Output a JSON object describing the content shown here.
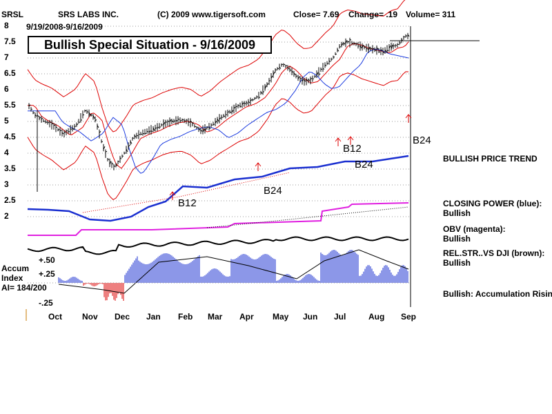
{
  "header": {
    "ticker": "SRSL",
    "company": "SRS LABS INC.",
    "copyright": "(C) 2009 www.tigersoft.com",
    "close": "Close=  7.69",
    "change": "Change= .19",
    "volume": "Volume= 311",
    "date_range": "9/19/2008-9/16/2009"
  },
  "banner": "Bullish Special Situation - 9/16/2009",
  "colors": {
    "price": "#000000",
    "bands": "#dd0000",
    "ma_short": "#dd0000",
    "ma_long": "#1a3adf",
    "closing_power": "#1a2fd0",
    "obv": "#e020e0",
    "relstr": "#000000",
    "accum_pos": "#1a2fd0",
    "accum_neg": "#dd0000",
    "arrows": "#dd0000"
  },
  "chart_data": {
    "type": "line",
    "y_ticks": [
      "8",
      "7.5",
      "7",
      "6.5",
      "6",
      "5.5",
      "5",
      "4.5",
      "4",
      "3.5",
      "3",
      "2.5",
      "2"
    ],
    "x_ticks": [
      "Oct",
      "Nov",
      "Dec",
      "Jan",
      "Feb",
      "Mar",
      "Apr",
      "May",
      "Jun",
      "Jul",
      "Aug",
      "Sep"
    ],
    "ylim": [
      2,
      8
    ],
    "grid": true,
    "price_series": [
      [
        0.0,
        5.55
      ],
      [
        0.3,
        5.2
      ],
      [
        0.6,
        5.05
      ],
      [
        1.0,
        4.9
      ],
      [
        1.5,
        4.6
      ],
      [
        2.0,
        4.85
      ],
      [
        2.4,
        5.35
      ],
      [
        2.8,
        5.1
      ],
      [
        3.1,
        4.3
      ],
      [
        3.35,
        3.75
      ],
      [
        3.6,
        3.55
      ],
      [
        3.8,
        3.75
      ],
      [
        4.1,
        4.1
      ],
      [
        4.4,
        4.5
      ],
      [
        4.8,
        4.65
      ],
      [
        5.2,
        4.75
      ],
      [
        5.6,
        4.9
      ],
      [
        6.0,
        5.0
      ],
      [
        6.4,
        5.05
      ],
      [
        6.8,
        4.95
      ],
      [
        7.2,
        4.7
      ],
      [
        7.6,
        4.85
      ],
      [
        8.0,
        5.1
      ],
      [
        8.4,
        5.3
      ],
      [
        8.8,
        5.5
      ],
      [
        9.2,
        5.6
      ],
      [
        9.6,
        5.8
      ],
      [
        10.0,
        6.2
      ],
      [
        10.3,
        6.6
      ],
      [
        10.6,
        6.8
      ],
      [
        10.9,
        6.65
      ],
      [
        11.2,
        6.4
      ],
      [
        11.5,
        6.25
      ],
      [
        11.8,
        6.3
      ],
      [
        12.1,
        6.55
      ],
      [
        12.4,
        6.8
      ],
      [
        12.7,
        7.0
      ],
      [
        13.0,
        7.4
      ],
      [
        13.3,
        7.5
      ],
      [
        13.6,
        7.45
      ],
      [
        13.9,
        7.35
      ],
      [
        14.2,
        7.3
      ],
      [
        14.5,
        7.25
      ],
      [
        14.8,
        7.2
      ],
      [
        15.1,
        7.35
      ],
      [
        15.4,
        7.4
      ],
      [
        15.7,
        7.69
      ]
    ],
    "signals": [
      "B12",
      "B24",
      "B12",
      "B24",
      "B24"
    ],
    "indicators": {
      "bullish_price_trend": "BULLISH PRICE TREND",
      "closing_power_label": "CLOSING POWER (blue):",
      "closing_power_state": "Bullish",
      "obv_label": "OBV (magenta):",
      "obv_state": "Bullish",
      "relstr_label": "REL.STR..VS DJI (brown):",
      "relstr_state": "Bullish",
      "accum_label": "Bullish: Accumulation Rising"
    },
    "accum": {
      "title_line1": "Accum",
      "title_line2": "Index",
      "ai": "AI= 184/200",
      "ticks": [
        "+.50",
        "+.25",
        "-.25"
      ]
    }
  }
}
